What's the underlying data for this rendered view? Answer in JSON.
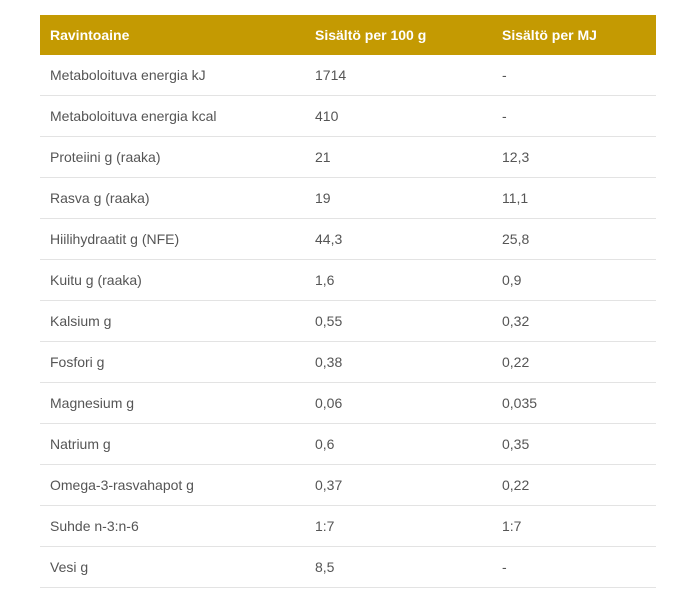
{
  "table": {
    "colors": {
      "header_bg": "#c49a02",
      "header_text": "#ffffff",
      "row_text": "#555555",
      "divider": "#e3e3e3"
    },
    "columns": {
      "nutrient": "Ravintoaine",
      "per_100g": "Sisältö per 100 g",
      "per_mj": "Sisältö per MJ"
    },
    "rows": [
      {
        "name": "Metaboloituva energia kJ",
        "per_100g": "1714",
        "per_mj": "-"
      },
      {
        "name": "Metaboloituva energia kcal",
        "per_100g": "410",
        "per_mj": "-"
      },
      {
        "name": "Proteiini g (raaka)",
        "per_100g": "21",
        "per_mj": "12,3"
      },
      {
        "name": "Rasva g (raaka)",
        "per_100g": "19",
        "per_mj": "11,1"
      },
      {
        "name": "Hiilihydraatit g (NFE)",
        "per_100g": "44,3",
        "per_mj": "25,8"
      },
      {
        "name": "Kuitu g (raaka)",
        "per_100g": "1,6",
        "per_mj": "0,9"
      },
      {
        "name": "Kalsium g",
        "per_100g": "0,55",
        "per_mj": "0,32"
      },
      {
        "name": "Fosfori g",
        "per_100g": "0,38",
        "per_mj": "0,22"
      },
      {
        "name": "Magnesium g",
        "per_100g": "0,06",
        "per_mj": "0,035"
      },
      {
        "name": "Natrium g",
        "per_100g": "0,6",
        "per_mj": "0,35"
      },
      {
        "name": "Omega-3-rasvahapot g",
        "per_100g": "0,37",
        "per_mj": "0,22"
      },
      {
        "name": "Suhde n-3:n-6",
        "per_100g": "1:7",
        "per_mj": "1:7"
      },
      {
        "name": "Vesi g",
        "per_100g": "8,5",
        "per_mj": "-"
      }
    ]
  }
}
